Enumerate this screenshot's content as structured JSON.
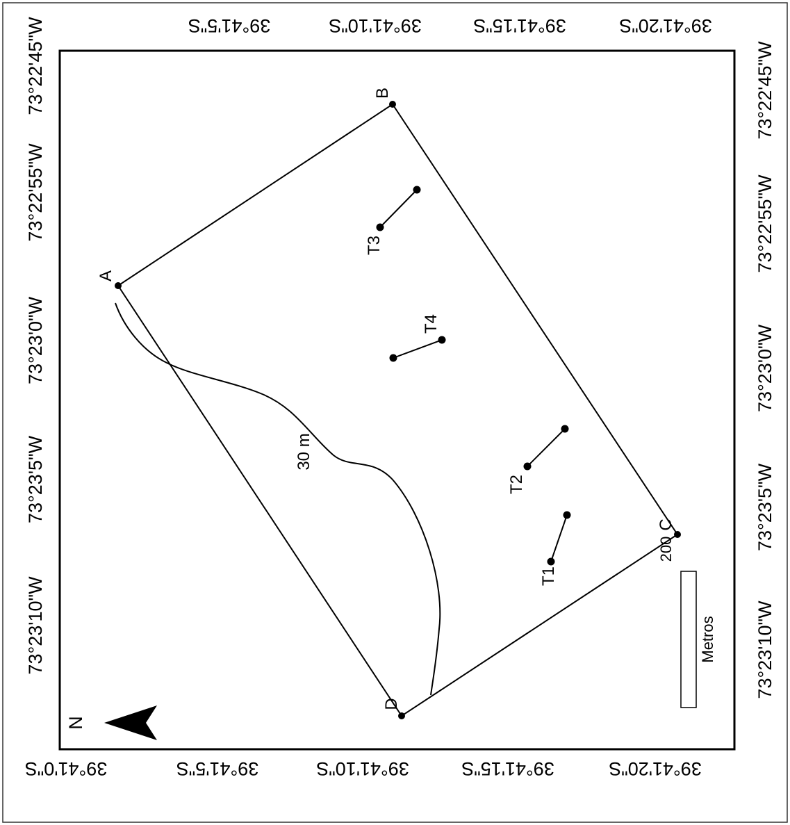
{
  "map": {
    "lon_labels": [
      "73°23'10\"W",
      "73°23'5\"W",
      "73°23'0\"W",
      "73°22'55\"W",
      "73°22'45\"W"
    ],
    "lat_labels": [
      "39°41'0\"S",
      "39°41'5\"S",
      "39°41'10\"S",
      "39°41'15\"S",
      "39°41'20\"S"
    ],
    "top_lat_labels": [
      "39°41'5\"S",
      "39°41'10\"S",
      "39°41'15\"S",
      "39°41'20\"S"
    ],
    "vertices": [
      "A",
      "B",
      "C",
      "D"
    ],
    "transects": [
      "T1",
      "T2",
      "T3",
      "T4"
    ],
    "contour_label": "30 m",
    "north_label": "N",
    "scale": {
      "value": "200",
      "unit": "Metros"
    }
  }
}
